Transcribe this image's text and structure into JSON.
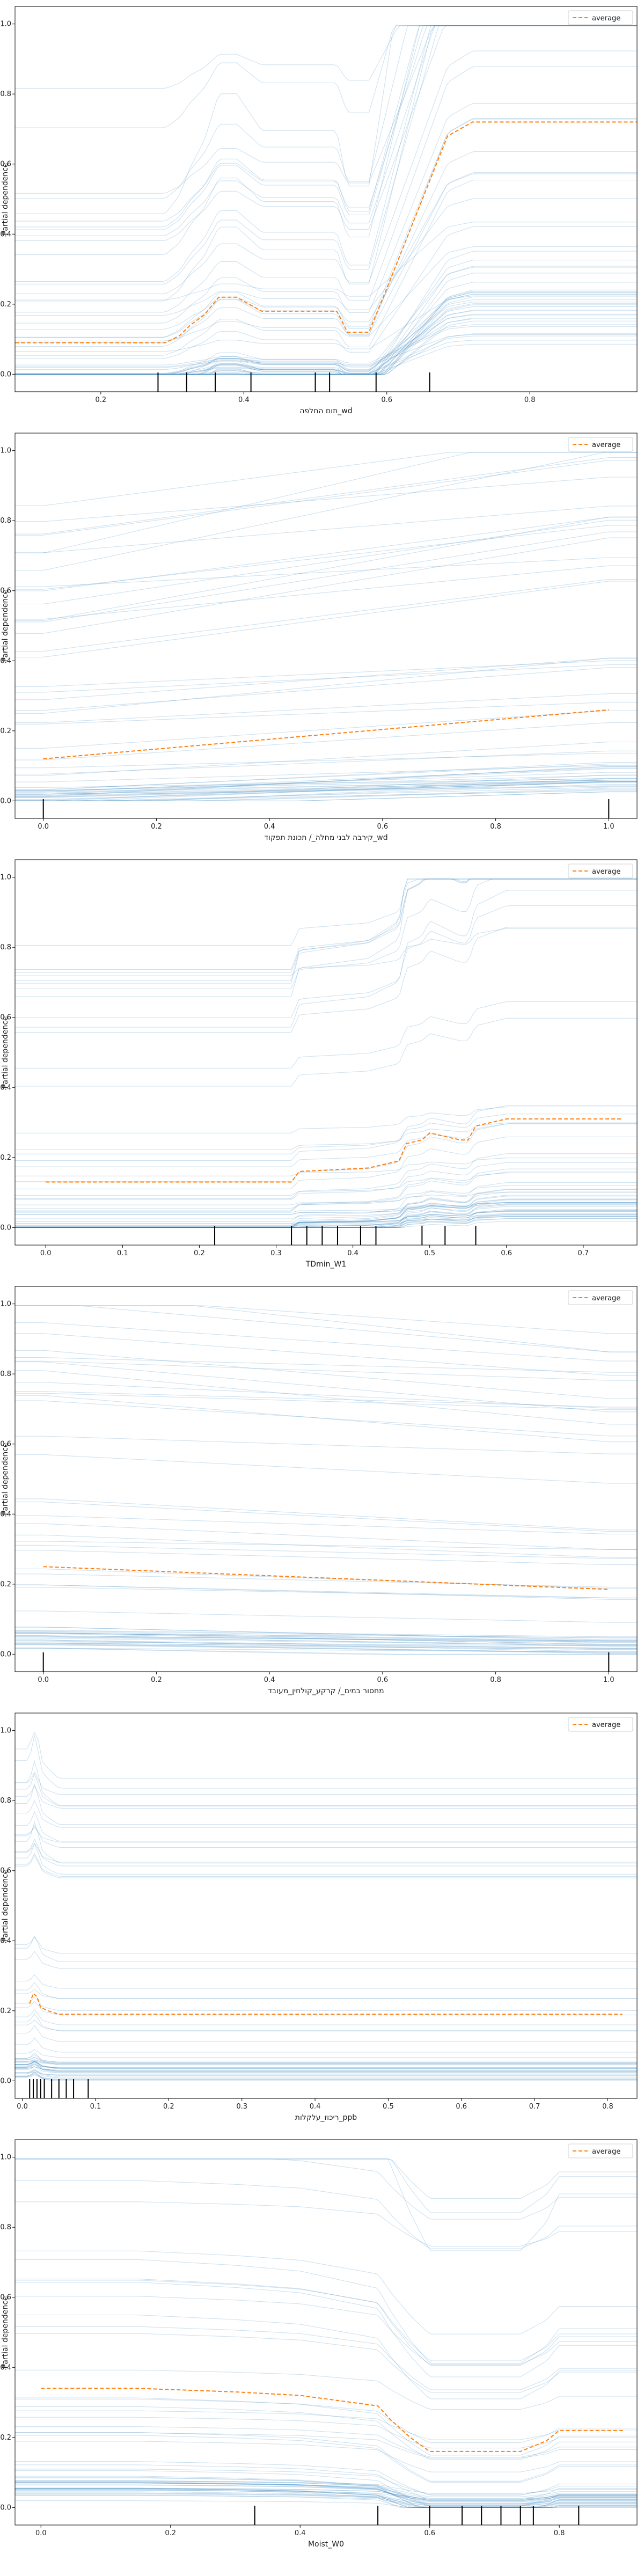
{
  "figure": {
    "panel_count": 6
  },
  "chart_data": [
    {
      "type": "line",
      "title": "",
      "xlabel": "תום החלפה_wd",
      "ylabel": "Partial dependence",
      "xlim": [
        0.08,
        0.95
      ],
      "ylim": [
        -0.05,
        1.05
      ],
      "xticks": [
        0.2,
        0.4,
        0.6,
        0.8
      ],
      "yticks": [
        0.0,
        0.2,
        0.4,
        0.6,
        0.8,
        1.0
      ],
      "grid": false,
      "legend": {
        "entries": [
          "average"
        ],
        "position": "upper right"
      },
      "colors": {
        "ice": "#1f77b4",
        "average": "#ff7f0e"
      },
      "average": {
        "x": [
          0.08,
          0.23,
          0.29,
          0.31,
          0.325,
          0.345,
          0.365,
          0.39,
          0.425,
          0.53,
          0.545,
          0.575,
          0.595,
          0.685,
          0.72,
          0.95
        ],
        "y": [
          0.09,
          0.09,
          0.09,
          0.11,
          0.14,
          0.17,
          0.22,
          0.22,
          0.18,
          0.18,
          0.12,
          0.12,
          0.22,
          0.68,
          0.72,
          0.72
        ]
      },
      "rug": [
        0.28,
        0.32,
        0.36,
        0.41,
        0.5,
        0.52,
        0.585,
        0.66
      ],
      "ice_count": 60
    },
    {
      "type": "line",
      "title": "",
      "xlabel": "קירבה לבני מחלה_/ תכונת תפקוד_wd",
      "ylabel": "Partial dependence",
      "xlim": [
        -0.05,
        1.05
      ],
      "ylim": [
        -0.05,
        1.05
      ],
      "xticks": [
        0.0,
        0.2,
        0.4,
        0.6,
        0.8,
        1.0
      ],
      "yticks": [
        0.0,
        0.2,
        0.4,
        0.6,
        0.8,
        1.0
      ],
      "grid": false,
      "legend": {
        "entries": [
          "average"
        ],
        "position": "upper right"
      },
      "colors": {
        "ice": "#1f77b4",
        "average": "#ff7f0e"
      },
      "average": {
        "x": [
          0.0,
          1.0
        ],
        "y": [
          0.12,
          0.26
        ]
      },
      "rug": [
        0.0,
        1.0
      ],
      "ice_count": 60
    },
    {
      "type": "line",
      "title": "",
      "xlabel": "TDmin_W1",
      "ylabel": "Partial dependence",
      "xlim": [
        -0.04,
        0.77
      ],
      "ylim": [
        -0.05,
        1.05
      ],
      "xticks": [
        0.0,
        0.1,
        0.2,
        0.3,
        0.4,
        0.5,
        0.6,
        0.7
      ],
      "yticks": [
        0.0,
        0.2,
        0.4,
        0.6,
        0.8,
        1.0
      ],
      "grid": false,
      "legend": {
        "entries": [
          "average"
        ],
        "position": "upper right"
      },
      "colors": {
        "ice": "#1f77b4",
        "average": "#ff7f0e"
      },
      "average": {
        "x": [
          0.0,
          0.32,
          0.33,
          0.42,
          0.44,
          0.46,
          0.47,
          0.49,
          0.5,
          0.52,
          0.54,
          0.55,
          0.56,
          0.6,
          0.75
        ],
        "y": [
          0.13,
          0.13,
          0.16,
          0.17,
          0.18,
          0.19,
          0.24,
          0.25,
          0.27,
          0.26,
          0.25,
          0.25,
          0.29,
          0.31,
          0.31
        ]
      },
      "rug": [
        0.22,
        0.32,
        0.34,
        0.36,
        0.38,
        0.41,
        0.43,
        0.49,
        0.52,
        0.56
      ],
      "ice_count": 60
    },
    {
      "type": "line",
      "title": "",
      "xlabel": "מחסור במים_/ קרקע_קולחין_מעובד",
      "ylabel": "Partial dependence",
      "xlim": [
        -0.05,
        1.05
      ],
      "ylim": [
        -0.05,
        1.05
      ],
      "xticks": [
        0.0,
        0.2,
        0.4,
        0.6,
        0.8,
        1.0
      ],
      "yticks": [
        0.0,
        0.2,
        0.4,
        0.6,
        0.8,
        1.0
      ],
      "grid": false,
      "legend": {
        "entries": [
          "average"
        ],
        "position": "upper right"
      },
      "colors": {
        "ice": "#1f77b4",
        "average": "#ff7f0e"
      },
      "average": {
        "x": [
          0.0,
          1.0
        ],
        "y": [
          0.25,
          0.185
        ]
      },
      "rug": [
        0.0,
        1.0
      ],
      "ice_count": 60
    },
    {
      "type": "line",
      "title": "",
      "xlabel": "ריכוז_עלקלות_ppb",
      "ylabel": "Partial dependence",
      "xlim": [
        -0.01,
        0.84
      ],
      "ylim": [
        -0.05,
        1.05
      ],
      "xticks": [
        0.0,
        0.1,
        0.2,
        0.3,
        0.4,
        0.5,
        0.6,
        0.7,
        0.8
      ],
      "yticks": [
        0.0,
        0.2,
        0.4,
        0.6,
        0.8,
        1.0
      ],
      "grid": false,
      "legend": {
        "entries": [
          "average"
        ],
        "position": "upper right"
      },
      "colors": {
        "ice": "#1f77b4",
        "average": "#ff7f0e"
      },
      "average": {
        "x": [
          0.01,
          0.015,
          0.02,
          0.025,
          0.035,
          0.05,
          0.06,
          0.82
        ],
        "y": [
          0.22,
          0.25,
          0.24,
          0.21,
          0.2,
          0.19,
          0.19,
          0.19
        ]
      },
      "rug": [
        0.01,
        0.015,
        0.02,
        0.025,
        0.03,
        0.04,
        0.05,
        0.06,
        0.07,
        0.09
      ],
      "ice_count": 60
    },
    {
      "type": "line",
      "title": "",
      "xlabel": "Moist_W0",
      "ylabel": "Partial dependence",
      "xlim": [
        -0.04,
        0.92
      ],
      "ylim": [
        -0.05,
        1.05
      ],
      "xticks": [
        0.0,
        0.2,
        0.4,
        0.6,
        0.8
      ],
      "yticks": [
        0.0,
        0.2,
        0.4,
        0.6,
        0.8,
        1.0
      ],
      "grid": false,
      "legend": {
        "entries": [
          "average"
        ],
        "position": "upper right"
      },
      "colors": {
        "ice": "#1f77b4",
        "average": "#ff7f0e"
      },
      "average": {
        "x": [
          0.0,
          0.15,
          0.3,
          0.4,
          0.52,
          0.54,
          0.57,
          0.6,
          0.62,
          0.65,
          0.7,
          0.74,
          0.78,
          0.8,
          0.9
        ],
        "y": [
          0.34,
          0.34,
          0.33,
          0.32,
          0.29,
          0.25,
          0.2,
          0.16,
          0.16,
          0.16,
          0.16,
          0.16,
          0.19,
          0.22,
          0.22
        ]
      },
      "rug": [
        0.33,
        0.52,
        0.6,
        0.65,
        0.68,
        0.71,
        0.74,
        0.76,
        0.83
      ],
      "ice_count": 60
    }
  ]
}
